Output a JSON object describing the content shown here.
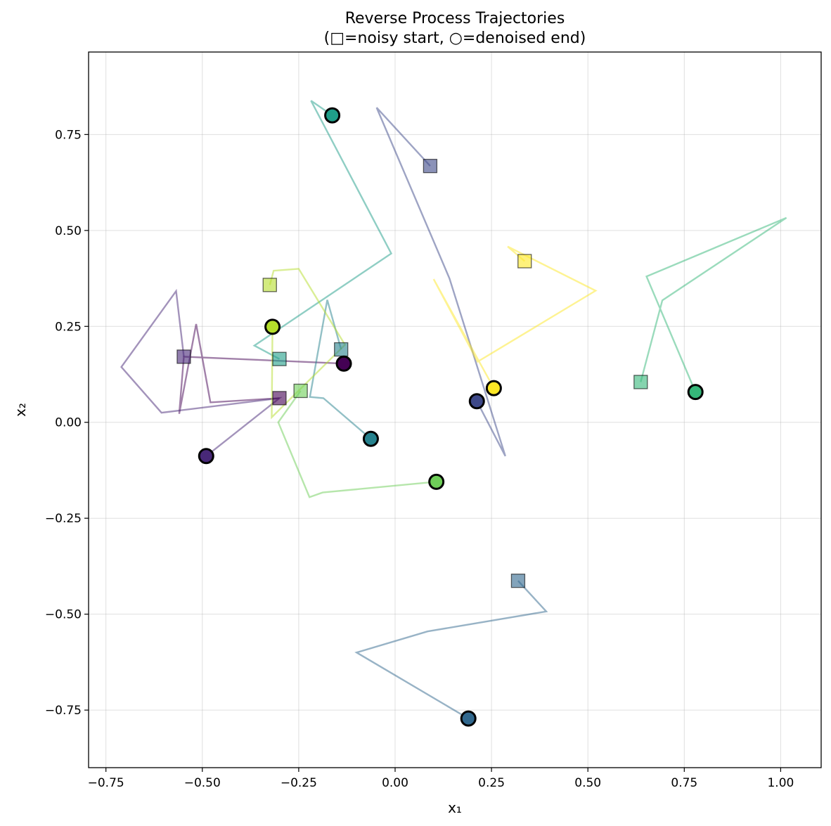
{
  "chart_data": {
    "type": "line",
    "title": "Reverse Process Trajectories",
    "subtitle": "(□=noisy start, ○=denoised end)",
    "xlabel": "x₁",
    "ylabel": "x₂",
    "xlim": [
      -0.795,
      1.105
    ],
    "ylim": [
      -0.9,
      0.965
    ],
    "grid": true,
    "xticks": [
      -0.75,
      -0.5,
      -0.25,
      0.0,
      0.25,
      0.5,
      0.75,
      1.0
    ],
    "xtick_labels": [
      "−0.75",
      "−0.50",
      "−0.25",
      "0.00",
      "0.25",
      "0.50",
      "0.75",
      "1.00"
    ],
    "yticks": [
      -0.75,
      -0.5,
      -0.25,
      0.0,
      0.25,
      0.5,
      0.75
    ],
    "ytick_labels": [
      "−0.75",
      "−0.50",
      "−0.25",
      "0.00",
      "0.25",
      "0.50",
      "0.75"
    ],
    "colormap": "viridis",
    "series": [
      {
        "color": "#440154",
        "points": [
          [
            -0.3,
            0.063
          ],
          [
            -0.479,
            0.052
          ],
          [
            -0.516,
            0.256
          ],
          [
            -0.56,
            0.022
          ],
          [
            -0.548,
            0.171
          ],
          [
            -0.133,
            0.153
          ]
        ]
      },
      {
        "color": "#482878",
        "points": [
          [
            -0.548,
            0.171
          ],
          [
            -0.568,
            0.342
          ],
          [
            -0.71,
            0.144
          ],
          [
            -0.606,
            0.025
          ],
          [
            -0.3,
            0.063
          ],
          [
            -0.49,
            -0.088
          ]
        ]
      },
      {
        "color": "#3e4989",
        "points": [
          [
            0.091,
            0.668
          ],
          [
            -0.048,
            0.82
          ],
          [
            0.141,
            0.375
          ],
          [
            0.286,
            -0.088
          ],
          [
            0.212,
            0.055
          ]
        ]
      },
      {
        "color": "#31688e",
        "points": [
          [
            0.319,
            -0.413
          ],
          [
            0.392,
            -0.493
          ],
          [
            0.084,
            -0.545
          ],
          [
            -0.1,
            -0.6
          ],
          [
            0.19,
            -0.772
          ]
        ]
      },
      {
        "color": "#26828e",
        "points": [
          [
            -0.14,
            0.19
          ],
          [
            -0.176,
            0.319
          ],
          [
            -0.221,
            0.066
          ],
          [
            -0.186,
            0.063
          ],
          [
            -0.063,
            -0.043
          ]
        ]
      },
      {
        "color": "#1f9e89",
        "points": [
          [
            -0.3,
            0.165
          ],
          [
            -0.365,
            0.2
          ],
          [
            -0.01,
            0.44
          ],
          [
            -0.218,
            0.838
          ],
          [
            -0.163,
            0.8
          ]
        ]
      },
      {
        "color": "#35b779",
        "points": [
          [
            0.637,
            0.105
          ],
          [
            0.693,
            0.318
          ],
          [
            1.015,
            0.533
          ],
          [
            0.652,
            0.38
          ],
          [
            0.779,
            0.079
          ]
        ]
      },
      {
        "color": "#6ece58",
        "points": [
          [
            -0.245,
            0.082
          ],
          [
            -0.303,
            0.0
          ],
          [
            -0.222,
            -0.195
          ],
          [
            -0.188,
            -0.183
          ],
          [
            0.107,
            -0.155
          ]
        ]
      },
      {
        "color": "#b5de2b",
        "points": [
          [
            -0.325,
            0.358
          ],
          [
            -0.315,
            0.395
          ],
          [
            -0.25,
            0.4
          ],
          [
            -0.13,
            0.202
          ],
          [
            -0.32,
            0.013
          ],
          [
            -0.318,
            0.249
          ]
        ]
      },
      {
        "color": "#fde725",
        "points": [
          [
            0.336,
            0.42
          ],
          [
            0.292,
            0.458
          ],
          [
            0.52,
            0.343
          ],
          [
            0.214,
            0.158
          ],
          [
            0.1,
            0.373
          ],
          [
            0.256,
            0.089
          ]
        ]
      }
    ]
  }
}
